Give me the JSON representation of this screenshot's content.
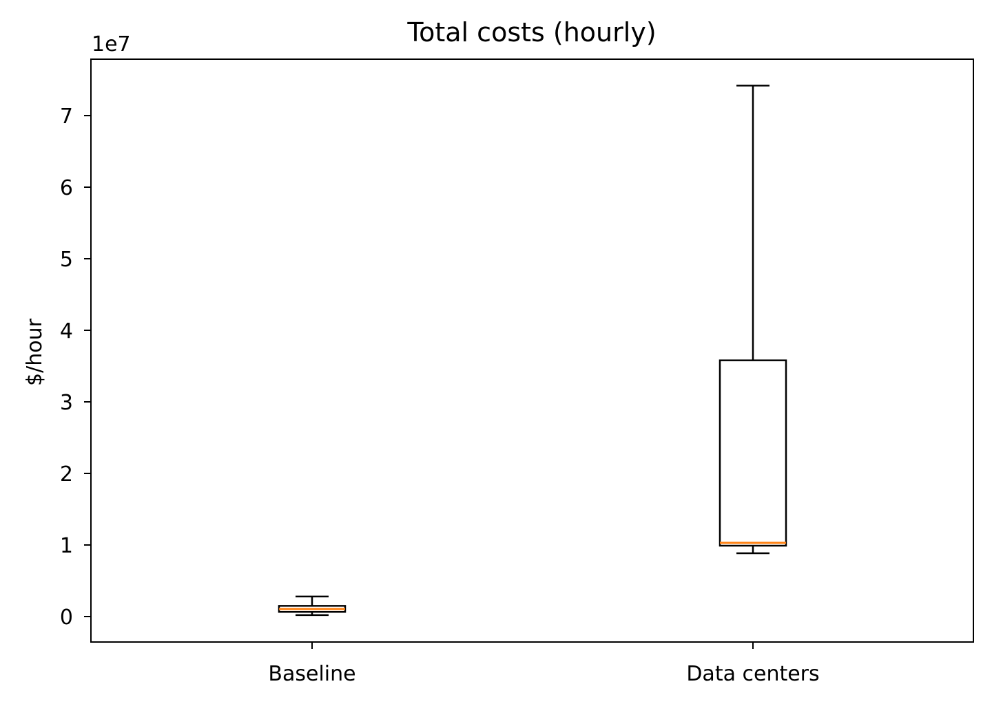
{
  "chart_data": {
    "type": "boxplot",
    "title": "Total costs (hourly)",
    "xlabel": "",
    "ylabel": "$/hour",
    "y_offset_label": "1e7",
    "categories": [
      "Baseline",
      "Data centers"
    ],
    "yticks": [
      0,
      1,
      2,
      3,
      4,
      5,
      6,
      7
    ],
    "ylim": [
      -0.36,
      7.8
    ],
    "y_scale": 10000000,
    "series": [
      {
        "name": "Baseline",
        "whisker_low": 200000,
        "q1": 650000,
        "median": 1050000,
        "q3": 1500000,
        "whisker_high": 2800000
      },
      {
        "name": "Data centers",
        "whisker_low": 8850000,
        "q1": 9900000,
        "median": 10300000,
        "q3": 35800000,
        "whisker_high": 74200000
      }
    ],
    "colors": {
      "box": "#000000",
      "median": "#ff7f0e"
    },
    "grid": false,
    "legend": null
  }
}
